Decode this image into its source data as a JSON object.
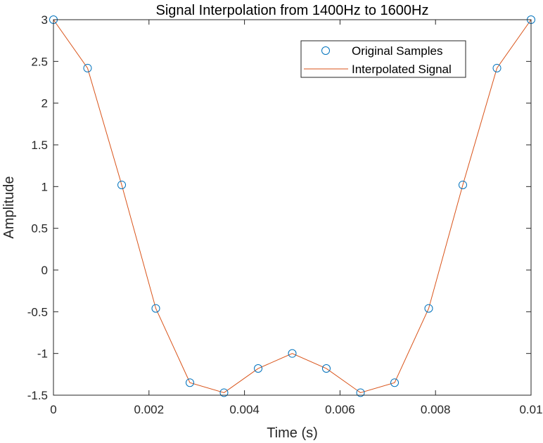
{
  "chart_data": {
    "type": "line",
    "title": "Signal Interpolation from 1400Hz to 1600Hz",
    "xlabel": "Time (s)",
    "ylabel": "Amplitude",
    "xlim": [
      0,
      0.01
    ],
    "ylim": [
      -1.5,
      3
    ],
    "grid": false,
    "legend_position": "top-right",
    "x_ticks": [
      0,
      0.002,
      0.004,
      0.006,
      0.008,
      0.01
    ],
    "x_tick_labels": [
      "0",
      "0.002",
      "0.004",
      "0.006",
      "0.008",
      "0.01"
    ],
    "y_ticks": [
      -1.5,
      -1,
      -0.5,
      0,
      0.5,
      1,
      1.5,
      2,
      2.5,
      3
    ],
    "y_tick_labels": [
      "-1.5",
      "-1",
      "-0.5",
      "0",
      "0.5",
      "1",
      "1.5",
      "2",
      "2.5",
      "3"
    ],
    "series": [
      {
        "name": "Original Samples",
        "style": "markers",
        "marker": "circle",
        "color": "#0072BD",
        "x": [
          0,
          0.000714,
          0.001429,
          0.002143,
          0.002857,
          0.003571,
          0.004286,
          0.005,
          0.005714,
          0.006429,
          0.007143,
          0.007857,
          0.008571,
          0.009286,
          0.01
        ],
        "y": [
          3,
          2.42,
          1.02,
          -0.46,
          -1.35,
          -1.47,
          -1.18,
          -1.0,
          -1.18,
          -1.47,
          -1.35,
          -0.46,
          1.02,
          2.42,
          3
        ]
      },
      {
        "name": "Interpolated Signal",
        "style": "line",
        "color": "#D95319",
        "x": [
          0,
          0.000714,
          0.001429,
          0.002143,
          0.002857,
          0.003571,
          0.004286,
          0.005,
          0.005714,
          0.006429,
          0.007143,
          0.007857,
          0.008571,
          0.009286,
          0.01
        ],
        "y": [
          3,
          2.42,
          1.02,
          -0.46,
          -1.35,
          -1.47,
          -1.18,
          -1.0,
          -1.18,
          -1.47,
          -1.35,
          -0.46,
          1.02,
          2.42,
          3
        ]
      }
    ]
  }
}
